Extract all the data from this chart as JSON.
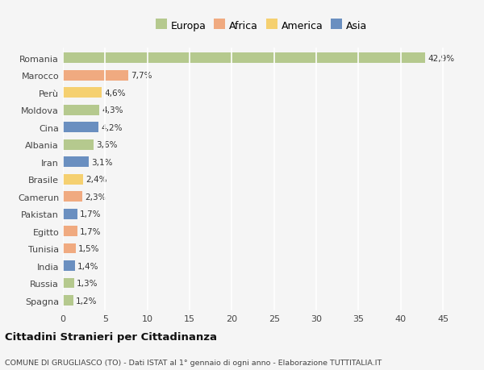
{
  "countries": [
    "Romania",
    "Marocco",
    "Perù",
    "Moldova",
    "Cina",
    "Albania",
    "Iran",
    "Brasile",
    "Camerun",
    "Pakistan",
    "Egitto",
    "Tunisia",
    "India",
    "Russia",
    "Spagna"
  ],
  "values": [
    42.9,
    7.7,
    4.6,
    4.3,
    4.2,
    3.6,
    3.1,
    2.4,
    2.3,
    1.7,
    1.7,
    1.5,
    1.4,
    1.3,
    1.2
  ],
  "labels": [
    "42,9%",
    "7,7%",
    "4,6%",
    "4,3%",
    "4,2%",
    "3,6%",
    "3,1%",
    "2,4%",
    "2,3%",
    "1,7%",
    "1,7%",
    "1,5%",
    "1,4%",
    "1,3%",
    "1,2%"
  ],
  "continents": [
    "Europa",
    "Africa",
    "America",
    "Europa",
    "Asia",
    "Europa",
    "Asia",
    "America",
    "Africa",
    "Asia",
    "Africa",
    "Africa",
    "Asia",
    "Europa",
    "Europa"
  ],
  "continent_colors": {
    "Europa": "#b5c98e",
    "Africa": "#f0aa80",
    "America": "#f5d070",
    "Asia": "#6a8fc0"
  },
  "legend_items": [
    "Europa",
    "Africa",
    "America",
    "Asia"
  ],
  "legend_colors": [
    "#b5c98e",
    "#f0aa80",
    "#f5d070",
    "#6a8fc0"
  ],
  "xlim": [
    0,
    47
  ],
  "xticks": [
    0,
    5,
    10,
    15,
    20,
    25,
    30,
    35,
    40,
    45
  ],
  "title": "Cittadini Stranieri per Cittadinanza",
  "subtitle": "COMUNE DI GRUGLIASCO (TO) - Dati ISTAT al 1° gennaio di ogni anno - Elaborazione TUTTITALIA.IT",
  "background_color": "#f5f5f5",
  "grid_color": "#ffffff",
  "bar_height": 0.6
}
